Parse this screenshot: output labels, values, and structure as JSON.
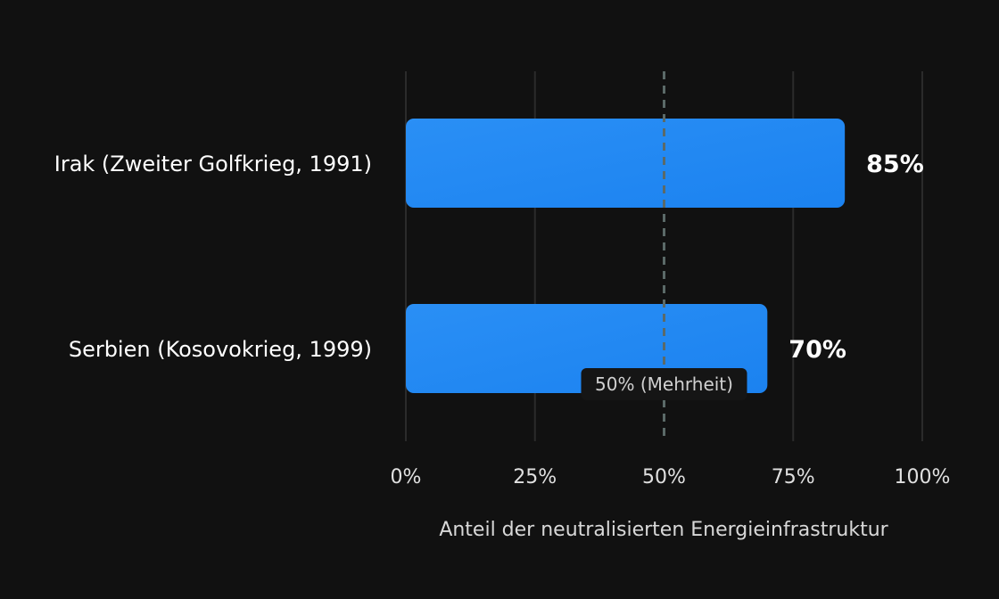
{
  "colors": {
    "background": "#111111",
    "bar": "#1b82f0",
    "bar_light": "#2a8ff5",
    "grid": "#2b2b2b",
    "reference_line": "#5b6a68",
    "category_text": "#ffffff",
    "value_text": "#ffffff",
    "tick_text": "#e0e0e0",
    "axis_title_text": "#d8d8d8",
    "annotation_bg": "#151515",
    "annotation_text": "#d0d0d0"
  },
  "chart_data": {
    "type": "bar",
    "orientation": "horizontal",
    "categories": [
      "Irak (Zweiter Golfkrieg, 1991)",
      "Serbien (Kosovokrieg, 1999)"
    ],
    "values": [
      85,
      70
    ],
    "value_labels": [
      "85%",
      "70%"
    ],
    "xlabel": "Anteil der neutralisierten Energieinfrastruktur",
    "xlim": [
      0,
      100
    ],
    "xticks": [
      0,
      25,
      50,
      75,
      100
    ],
    "xtick_labels": [
      "0%",
      "25%",
      "50%",
      "75%",
      "100%"
    ],
    "grid": true,
    "reference_line": {
      "value": 50,
      "label": "50% (Mehrheit)",
      "style": "dashed"
    }
  }
}
